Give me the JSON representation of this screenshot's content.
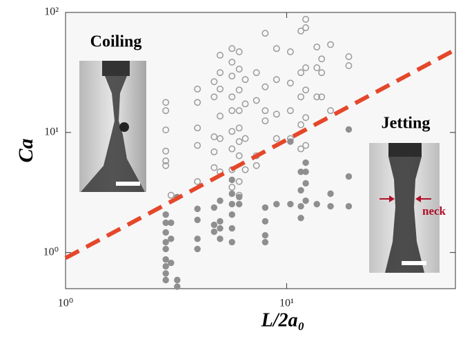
{
  "chart_data": {
    "type": "scatter",
    "xlabel": "L/2a₀",
    "ylabel": "Ca",
    "annotations": [
      "Coiling",
      "Jetting",
      "neck"
    ],
    "log_x": true,
    "log_y": true,
    "xlim": [
      1,
      58
    ],
    "ylim": [
      0.5,
      100
    ],
    "xticks": [
      {
        "value": 1,
        "label": "10⁰"
      },
      {
        "value": 10,
        "label": "10¹"
      }
    ],
    "yticks": [
      {
        "value": 1,
        "label": "10⁰"
      },
      {
        "value": 10,
        "label": "10¹"
      },
      {
        "value": 100,
        "label": "10²"
      }
    ],
    "series": [
      {
        "marker": "open",
        "color": "#9a9a9a",
        "x": [
          2.84,
          2.84,
          2.84,
          2.84,
          2.84,
          2.84,
          3.0,
          3.95,
          3.95,
          3.95,
          3.95,
          3.95,
          4.7,
          4.7,
          4.7,
          4.7,
          4.7,
          5.0,
          5.0,
          5.0,
          5.0,
          5.0,
          5.0,
          5.66,
          5.66,
          5.66,
          5.66,
          5.66,
          5.66,
          5.66,
          5.66,
          5.66,
          6.1,
          6.1,
          6.1,
          6.1,
          6.1,
          6.1,
          6.1,
          6.1,
          6.1,
          6.5,
          6.5,
          6.5,
          6.5,
          7.3,
          7.3,
          7.3,
          7.3,
          8.0,
          8.0,
          8.0,
          8.0,
          9.0,
          9.0,
          9.0,
          9.0,
          10.4,
          10.4,
          10.4,
          10.4,
          11.6,
          11.6,
          11.6,
          11.6,
          11.6,
          12.2,
          12.2,
          12.2,
          12.2,
          12.2,
          12.2,
          13.7,
          13.7,
          13.7,
          14.4,
          14.4,
          14.4,
          15.8,
          15.8,
          19.1,
          19.1
        ],
        "values": [
          17.8,
          15.2,
          10.5,
          7.0,
          5.8,
          5.3,
          3.0,
          23,
          17.8,
          10.9,
          7.8,
          3.9,
          26.5,
          19.8,
          9.2,
          6.9,
          5.1,
          44,
          31.5,
          23,
          13.7,
          8.9,
          4.7,
          50,
          38.5,
          29.5,
          19.8,
          15.2,
          10.2,
          7.3,
          4.9,
          3.5,
          47,
          33.7,
          22.6,
          15.2,
          10.9,
          8.4,
          6.4,
          3.9,
          3.0,
          27.6,
          17.3,
          8.9,
          4.9,
          31.5,
          18.5,
          6.4,
          5.3,
          67,
          24,
          15.2,
          12.5,
          50,
          27.6,
          14.2,
          8.9,
          47,
          25.8,
          15.2,
          8.9,
          70,
          31.5,
          19.8,
          11.6,
          7.3,
          87.6,
          74.6,
          34.6,
          22.6,
          13.3,
          7.8,
          51.5,
          34.6,
          19.8,
          41,
          31.5,
          19.8,
          54,
          15.2,
          42.8,
          36
        ]
      },
      {
        "marker": "filled",
        "color": "#8f8f8f",
        "x": [
          2.84,
          2.84,
          2.84,
          2.84,
          2.84,
          2.84,
          2.84,
          2.84,
          2.84,
          3.0,
          3.0,
          3.0,
          3.2,
          3.2,
          3.2,
          3.95,
          3.95,
          3.95,
          3.95,
          4.7,
          4.7,
          4.7,
          5.0,
          5.0,
          5.0,
          5.0,
          5.66,
          5.66,
          5.66,
          5.66,
          5.66,
          5.66,
          6.1,
          6.1,
          8.0,
          8.0,
          8.0,
          8.0,
          9.0,
          10.4,
          10.4,
          11.6,
          11.6,
          11.6,
          11.6,
          12.2,
          12.2,
          12.2,
          12.2,
          13.7,
          15.8,
          15.8,
          19.1,
          19.1,
          19.1
        ],
        "values": [
          2.07,
          1.77,
          1.47,
          1.22,
          1.07,
          0.875,
          0.767,
          0.67,
          0.59,
          1.77,
          1.3,
          0.82,
          2.9,
          0.59,
          0.52,
          2.31,
          1.87,
          1.3,
          1.07,
          2.37,
          1.7,
          1.49,
          2.7,
          1.82,
          1.59,
          1.3,
          4.03,
          3.09,
          2.53,
          2.07,
          1.59,
          1.22,
          2.9,
          2.53,
          2.37,
          1.82,
          1.39,
          1.22,
          2.53,
          8.4,
          2.53,
          4.7,
          3.3,
          2.43,
          1.94,
          5.6,
          4.7,
          3.77,
          2.7,
          2.53,
          3.09,
          2.43,
          10.6,
          4.3,
          2.43
        ]
      }
    ],
    "fit_line": {
      "color": "#e5472a",
      "x": [
        1,
        58
      ],
      "values": [
        0.9,
        49
      ]
    }
  }
}
